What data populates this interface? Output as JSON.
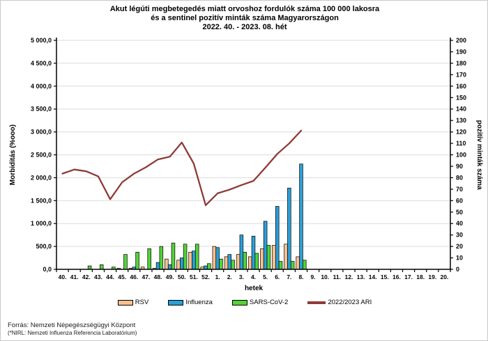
{
  "title": {
    "line1": "Akut légúti megbetegedés miatt orvoshoz fordulók száma 100 000 lakosra",
    "line2": "és a sentinel pozitív minták száma Magyarországon",
    "line3": "2022. 40. - 2023. 08. hét"
  },
  "footer": {
    "line1": "Forrás: Nemzeti Népegészségügyi Központ",
    "line2": "(*NIRL: Nemzeti Influenza Referencia Laboratórium)"
  },
  "colors": {
    "rsv": "#FAC090",
    "influenza": "#2B9FD8",
    "sars": "#53D337",
    "ari_line": "#8F3B37",
    "grid": "#DBDBDB",
    "axis": "#000000",
    "bar_stroke": "#000000"
  },
  "chart_data": {
    "type": "bar",
    "title": "Akut légúti megbetegedés miatt orvoshoz fordulók száma 100 000 lakosra és a sentinel pozitív minták száma Magyarországon 2022. 40. - 2023. 08. hét",
    "xlabel": "hetek",
    "ylabel_left": "Morbiditás (%ooo)",
    "ylabel_right": "pozitív minták száma",
    "ylim_left": [
      0,
      5000
    ],
    "ylim_right": [
      0,
      200
    ],
    "grid": true,
    "legend_position": "bottom",
    "categories": [
      "40.",
      "41.",
      "42.",
      "43.",
      "44.",
      "45.",
      "46.",
      "47.",
      "48.",
      "49.",
      "50.",
      "51.",
      "52.",
      "1.",
      "2.",
      "3.",
      "4.",
      "5.",
      "6.",
      "7.",
      "8.",
      "9.",
      "10.",
      "11.",
      "12.",
      "13.",
      "14.",
      "15.",
      "16.",
      "17.",
      "18.",
      "19.",
      "20."
    ],
    "left_tick_labels": [
      "0,0",
      "500,0",
      "1 000,0",
      "1 500,0",
      "2 000,0",
      "2 500,0",
      "3 000,0",
      "3 500,0",
      "4 000,0",
      "4 500,0",
      "5 000,0"
    ],
    "right_tick_step": 10,
    "series": [
      {
        "name": "RSV",
        "axis": "right",
        "kind": "bar",
        "values": [
          0,
          0,
          0,
          0,
          0,
          1,
          1,
          2,
          1,
          9,
          8,
          15,
          2,
          20,
          11,
          13,
          11,
          18,
          21,
          22,
          11,
          0,
          0,
          0,
          0,
          0,
          0,
          0,
          0,
          0,
          0,
          0,
          0
        ]
      },
      {
        "name": "Influenza",
        "axis": "right",
        "kind": "bar",
        "values": [
          0,
          0,
          0,
          0,
          0,
          0,
          2,
          0,
          6,
          4,
          10,
          16,
          3,
          19,
          13,
          30,
          29,
          42,
          55,
          71,
          92,
          0,
          0,
          0,
          0,
          0,
          0,
          0,
          0,
          0,
          0,
          0,
          0
        ]
      },
      {
        "name": "SARS-CoV-2",
        "axis": "right",
        "kind": "bar",
        "values": [
          0,
          0,
          3,
          4,
          2,
          13,
          15,
          18,
          20,
          23,
          22,
          22,
          5,
          9,
          8,
          15,
          14,
          21,
          7,
          7,
          8,
          0,
          0,
          0,
          0,
          0,
          0,
          0,
          0,
          0,
          0,
          0,
          0
        ]
      },
      {
        "name": "2022/2023 ARI",
        "axis": "left",
        "kind": "line",
        "values": [
          2090,
          2180,
          2140,
          2030,
          1530,
          1900,
          2090,
          2230,
          2400,
          2460,
          2770,
          2310,
          1400,
          1660,
          1740,
          1840,
          1930,
          2220,
          2520,
          2750,
          3030,
          null,
          null,
          null,
          null,
          null,
          null,
          null,
          null,
          null,
          null,
          null,
          null
        ]
      }
    ]
  },
  "legend": {
    "items": [
      {
        "label": "RSV"
      },
      {
        "label": "Influenza"
      },
      {
        "label": "SARS-CoV-2"
      },
      {
        "label": "2022/2023 ARI"
      }
    ]
  }
}
